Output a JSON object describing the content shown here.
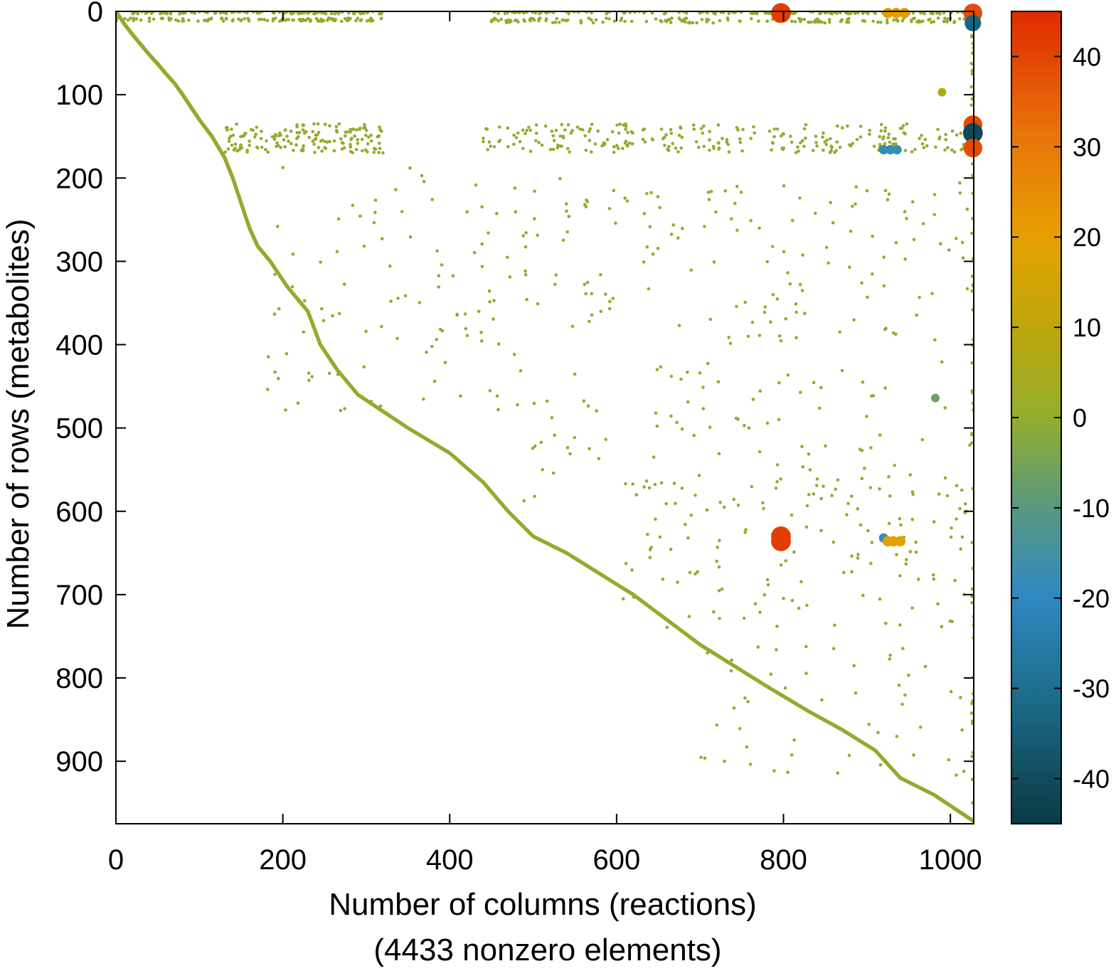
{
  "chart_data": {
    "type": "scatter",
    "title": "",
    "xlabel": "Number of columns (reactions)",
    "xlabel_sub": "(4433 nonzero elements)",
    "ylabel": "Number of rows (metabolites)",
    "xlim": [
      0,
      1028
    ],
    "ylim": [
      0,
      975
    ],
    "y_inverted": true,
    "x_ticks": [
      0,
      200,
      400,
      600,
      800,
      1000
    ],
    "y_ticks": [
      0,
      100,
      200,
      300,
      400,
      500,
      600,
      700,
      800,
      900
    ],
    "colorbar": {
      "range": [
        -45,
        45
      ],
      "ticks": [
        40,
        30,
        20,
        10,
        0,
        -10,
        -20,
        -30,
        -40
      ],
      "colormap": [
        "#0a3b45",
        "#1b6a87",
        "#2f88c2",
        "#5d9a78",
        "#94ad2e",
        "#c0a70a",
        "#e6a000",
        "#e8740a",
        "#e02a00"
      ]
    },
    "nonzero_count": 4433,
    "grid": false,
    "legend": "colorbar-right",
    "marker_color": "#95aa2e",
    "diagonal": [
      [
        0,
        0
      ],
      [
        10,
        15
      ],
      [
        20,
        28
      ],
      [
        30,
        40
      ],
      [
        40,
        52
      ],
      [
        50,
        63
      ],
      [
        60,
        75
      ],
      [
        70,
        86
      ],
      [
        80,
        100
      ],
      [
        90,
        115
      ],
      [
        100,
        130
      ],
      [
        115,
        150
      ],
      [
        130,
        175
      ],
      [
        140,
        200
      ],
      [
        150,
        230
      ],
      [
        160,
        260
      ],
      [
        170,
        282
      ],
      [
        185,
        300
      ],
      [
        205,
        330
      ],
      [
        230,
        360
      ],
      [
        245,
        400
      ],
      [
        265,
        430
      ],
      [
        290,
        460
      ],
      [
        320,
        480
      ],
      [
        350,
        500
      ],
      [
        400,
        530
      ],
      [
        440,
        565
      ],
      [
        470,
        600
      ],
      [
        500,
        630
      ],
      [
        540,
        650
      ],
      [
        580,
        675
      ],
      [
        620,
        700
      ],
      [
        660,
        730
      ],
      [
        700,
        760
      ],
      [
        740,
        785
      ],
      [
        780,
        810
      ],
      [
        830,
        840
      ],
      [
        870,
        862
      ],
      [
        910,
        887
      ],
      [
        940,
        920
      ],
      [
        980,
        940
      ],
      [
        1010,
        960
      ],
      [
        1028,
        972
      ]
    ],
    "clusters": [
      {
        "x": [
          20,
          320
        ],
        "y": [
          0,
          3
        ],
        "n": 120
      },
      {
        "x": [
          0,
          320
        ],
        "y": [
          8,
          12
        ],
        "n": 110
      },
      {
        "x": [
          450,
          1028
        ],
        "y": [
          0,
          3
        ],
        "n": 150
      },
      {
        "x": [
          450,
          1028
        ],
        "y": [
          8,
          14
        ],
        "n": 160
      },
      {
        "x": [
          130,
          320
        ],
        "y": [
          135,
          170
        ],
        "n": 160
      },
      {
        "x": [
          440,
          1028
        ],
        "y": [
          135,
          170
        ],
        "n": 260
      },
      {
        "x": [
          480,
          1028
        ],
        "y": [
          200,
          400
        ],
        "n": 150
      },
      {
        "x": [
          180,
          480
        ],
        "y": [
          180,
          480
        ],
        "n": 100
      },
      {
        "x": [
          480,
          1028
        ],
        "y": [
          420,
          600
        ],
        "n": 100
      },
      {
        "x": [
          600,
          1028
        ],
        "y": [
          560,
          740
        ],
        "n": 130
      },
      {
        "x": [
          700,
          1028
        ],
        "y": [
          760,
          920
        ],
        "n": 50
      },
      {
        "x": [
          1025,
          1028
        ],
        "y": [
          0,
          975
        ],
        "n": 60
      }
    ],
    "large_points": [
      {
        "x": 797,
        "y": 2,
        "value": 42
      },
      {
        "x": 1027,
        "y": 2,
        "value": 40
      },
      {
        "x": 1027,
        "y": 14,
        "value": -35
      },
      {
        "x": 925,
        "y": 2,
        "value": 22
      },
      {
        "x": 935,
        "y": 2,
        "value": 22
      },
      {
        "x": 945,
        "y": 2,
        "value": 22
      },
      {
        "x": 1027,
        "y": 136,
        "value": 40
      },
      {
        "x": 1027,
        "y": 146,
        "value": -42
      },
      {
        "x": 1027,
        "y": 164,
        "value": 40
      },
      {
        "x": 920,
        "y": 166,
        "value": -20
      },
      {
        "x": 928,
        "y": 166,
        "value": -20
      },
      {
        "x": 936,
        "y": 166,
        "value": -20
      },
      {
        "x": 797,
        "y": 630,
        "value": 42
      },
      {
        "x": 797,
        "y": 636,
        "value": 42
      },
      {
        "x": 920,
        "y": 632,
        "value": -20
      },
      {
        "x": 925,
        "y": 636,
        "value": 22
      },
      {
        "x": 932,
        "y": 636,
        "value": 22
      },
      {
        "x": 940,
        "y": 636,
        "value": 22
      },
      {
        "x": 982,
        "y": 464,
        "value": -8
      },
      {
        "x": 990,
        "y": 97,
        "value": 8
      }
    ]
  }
}
